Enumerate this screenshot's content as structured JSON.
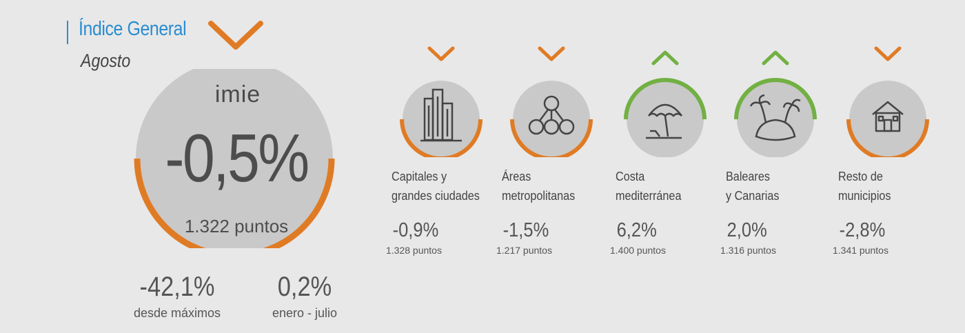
{
  "header": {
    "title": "Índice General",
    "subtitle": "Agosto"
  },
  "colors": {
    "down": "#e07b25",
    "up": "#72b043",
    "accent": "#2a8dd1",
    "circle": "#c9c9c9"
  },
  "main": {
    "brand": "imie",
    "value": "-0,5%",
    "points": "1.322 puntos",
    "trend": "down",
    "stats": [
      {
        "value": "-42,1%",
        "label": "desde máximos"
      },
      {
        "value": "0,2%",
        "label": "enero - julio"
      }
    ]
  },
  "categories": [
    {
      "icon": "buildings-icon",
      "label1": "Capitales y",
      "label2": "grandes ciudades",
      "value": "-0,9%",
      "points": "1.328 puntos",
      "trend": "down"
    },
    {
      "icon": "network-icon",
      "label1": "Áreas",
      "label2": "metropolitanas",
      "value": "-1,5%",
      "points": "1.217 puntos",
      "trend": "down"
    },
    {
      "icon": "beach-umbrella-icon",
      "label1": "Costa",
      "label2": "mediterránea",
      "value": "6,2%",
      "points": "1.400 puntos",
      "trend": "up"
    },
    {
      "icon": "palm-island-icon",
      "label1": "Baleares",
      "label2": "y Canarias",
      "value": "2,0%",
      "points": "1.316 puntos",
      "trend": "up"
    },
    {
      "icon": "house-icon",
      "label1": "Resto de",
      "label2": "municipios",
      "value": "-2,8%",
      "points": "1.341 puntos",
      "trend": "down"
    }
  ]
}
